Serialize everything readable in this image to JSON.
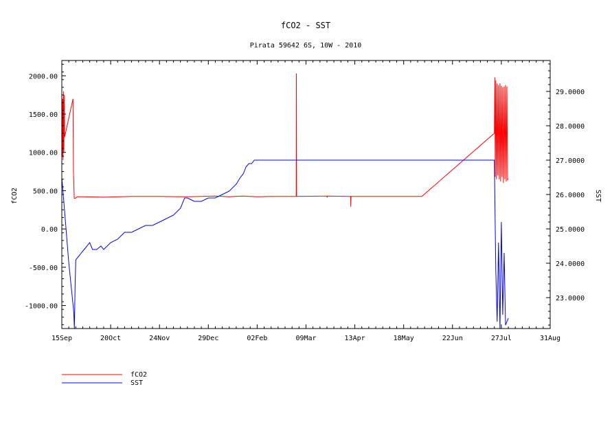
{
  "chart_data": {
    "type": "line",
    "title": "fCO2 - SST",
    "subtitle": "Pirata 59642 6S, 10W - 2010",
    "ylabel": "fCO2",
    "y2label": "SST",
    "x_ticks": [
      "15Sep",
      "20Oct",
      "24Nov",
      "29Dec",
      "02Feb",
      "09Mar",
      "13Apr",
      "18May",
      "22Jun",
      "27Jul",
      "31Aug"
    ],
    "xlim_days": [
      0,
      350
    ],
    "ylim": [
      -1300,
      2200
    ],
    "y_ticks": [
      -1000,
      -500,
      0,
      500,
      1000,
      1500,
      2000
    ],
    "y_tick_labels": [
      "-1000.00",
      "-500.00",
      "0.00",
      "500.00",
      "1000.00",
      "1500.00",
      "2000.00"
    ],
    "y2lim": [
      22.1,
      29.9
    ],
    "y2_ticks": [
      23,
      24,
      25,
      26,
      27,
      28,
      29
    ],
    "y2_tick_labels": [
      "23.0000",
      "24.0000",
      "25.0000",
      "26.0000",
      "27.0000",
      "28.0000",
      "29.0000"
    ],
    "legend_position": "bottom-left",
    "series": [
      {
        "name": "fCO2",
        "axis": "left",
        "color": "#ff0000",
        "x": [
          0,
          0.3,
          0.6,
          0.9,
          1.2,
          1.5,
          1.8,
          2.0,
          8.0,
          8.3,
          8.6,
          8.9,
          9.5,
          11,
          15,
          30,
          50,
          70,
          90,
          110,
          120,
          124,
          130,
          140,
          150,
          160,
          168,
          168.1,
          168.3,
          168.5,
          190,
          190.1,
          190.3,
          190.5,
          207,
          207.1,
          207.3,
          207.5,
          240,
          258,
          310,
          310.3,
          310.6,
          311,
          311.5,
          312,
          312.5,
          313,
          313.5,
          314,
          314.5,
          315,
          315.5,
          316,
          316.5,
          317,
          317.5,
          318,
          318.5,
          319,
          319.5,
          320
        ],
        "y": [
          1800,
          950,
          1700,
          900,
          1800,
          1000,
          1750,
          1200,
          1700,
          750,
          600,
          400,
          400,
          420,
          420,
          415,
          425,
          425,
          420,
          430,
          420,
          425,
          430,
          420,
          425,
          425,
          425,
          2030,
          425,
          425,
          430,
          410,
          430,
          430,
          425,
          290,
          425,
          425,
          425,
          425,
          1250,
          1980,
          680,
          1940,
          650,
          1900,
          700,
          1880,
          650,
          1900,
          620,
          1870,
          680,
          1850,
          600,
          1860,
          650,
          1880,
          620,
          1860,
          640,
          650
        ]
      },
      {
        "name": "SST",
        "axis": "right",
        "color": "#0000ff",
        "x": [
          0,
          2,
          5,
          8.5,
          9,
          9.5,
          10,
          12,
          14,
          16,
          18,
          20,
          22,
          25,
          28,
          30,
          35,
          40,
          45,
          50,
          55,
          60,
          65,
          70,
          75,
          80,
          85,
          88,
          90,
          95,
          100,
          105,
          110,
          115,
          120,
          125,
          128,
          130,
          132,
          134,
          136,
          138,
          140,
          250,
          310,
          311,
          312,
          313,
          314,
          315,
          316,
          317,
          318,
          319,
          320
        ],
        "y": [
          26.5,
          25.5,
          24.0,
          22.6,
          22.1,
          23.3,
          24.1,
          24.2,
          24.3,
          24.4,
          24.5,
          24.6,
          24.4,
          24.4,
          24.5,
          24.4,
          24.6,
          24.7,
          24.9,
          24.9,
          25.0,
          25.1,
          25.1,
          25.2,
          25.3,
          25.4,
          25.6,
          25.9,
          25.9,
          25.8,
          25.8,
          25.9,
          25.9,
          26.0,
          26.1,
          26.3,
          26.5,
          26.6,
          26.8,
          26.9,
          26.9,
          27.0,
          27.0,
          27.0,
          27.0,
          23.8,
          22.3,
          24.6,
          22.1,
          25.2,
          22.5,
          24.3,
          22.2,
          22.3,
          22.4
        ]
      }
    ]
  }
}
